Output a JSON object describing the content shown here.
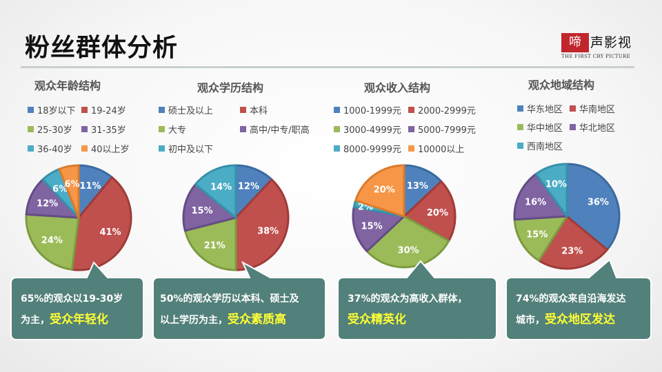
{
  "title": "粉丝群体分析",
  "logo": {
    "box": "啼",
    "rest": "声影视",
    "sub": "THE FIRST CRY PICTURE"
  },
  "colors": {
    "blue": "#4f81bd",
    "red": "#c0504d",
    "green": "#9bbb59",
    "purple": "#8064a2",
    "teal": "#4bacc6",
    "orange": "#f79646",
    "callout": "#52807a"
  },
  "chart_data": [
    {
      "type": "pie",
      "title": "观众年龄结构",
      "series": [
        {
          "name": "18岁以下",
          "value": 11,
          "label": "11%"
        },
        {
          "name": "19-24岁",
          "value": 41,
          "label": "41%"
        },
        {
          "name": "25-30岁",
          "value": 24,
          "label": "24%"
        },
        {
          "name": "31-35岁",
          "value": 12,
          "label": "12%"
        },
        {
          "name": "36-40岁",
          "value": 6,
          "label": "6%"
        },
        {
          "name": "40以上岁",
          "value": 6,
          "label": "6%"
        }
      ]
    },
    {
      "type": "pie",
      "title": "观众学历结构",
      "series": [
        {
          "name": "硕士及以上",
          "value": 12,
          "label": "12%"
        },
        {
          "name": "本科",
          "value": 38,
          "label": "38%"
        },
        {
          "name": "大专",
          "value": 21,
          "label": "21%"
        },
        {
          "name": "高中/中专/职高",
          "value": 15,
          "label": "15%"
        },
        {
          "name": "初中及以下",
          "value": 14,
          "label": "14%"
        }
      ]
    },
    {
      "type": "pie",
      "title": "观众收入结构",
      "series": [
        {
          "name": "1000-1999元",
          "value": 13,
          "label": "13%"
        },
        {
          "name": "2000-2999元",
          "value": 20,
          "label": "20%"
        },
        {
          "name": "3000-4999元",
          "value": 30,
          "label": "30%"
        },
        {
          "name": "5000-7999元",
          "value": 15,
          "label": "15%"
        },
        {
          "name": "8000-9999元",
          "value": 2,
          "label": "2%"
        },
        {
          "name": "10000以上",
          "value": 20,
          "label": "20%"
        }
      ]
    },
    {
      "type": "pie",
      "title": "观众地域结构",
      "series": [
        {
          "name": "华东地区",
          "value": 36,
          "label": "36%"
        },
        {
          "name": "华南地区",
          "value": 23,
          "label": "23%"
        },
        {
          "name": "华中地区",
          "value": 15,
          "label": "15%"
        },
        {
          "name": "华北地区",
          "value": 16,
          "label": "16%"
        },
        {
          "name": "西南地区",
          "value": 10,
          "label": "10%"
        }
      ]
    }
  ],
  "callouts": [
    {
      "line1": "65%的观众以19-30岁",
      "line2a": "为主，",
      "line2b": "受众年轻化"
    },
    {
      "line1": "50%的观众学历以本科、硕士及",
      "line2a": "以上学历为主，",
      "line2b": "受众素质高"
    },
    {
      "line1": "37%的观众为高收入群体，",
      "line2a": "",
      "line2b": "受众精英化"
    },
    {
      "line1": "74%的观众来自沿海发达",
      "line2a": "城市，",
      "line2b": "受众地区发达"
    }
  ]
}
